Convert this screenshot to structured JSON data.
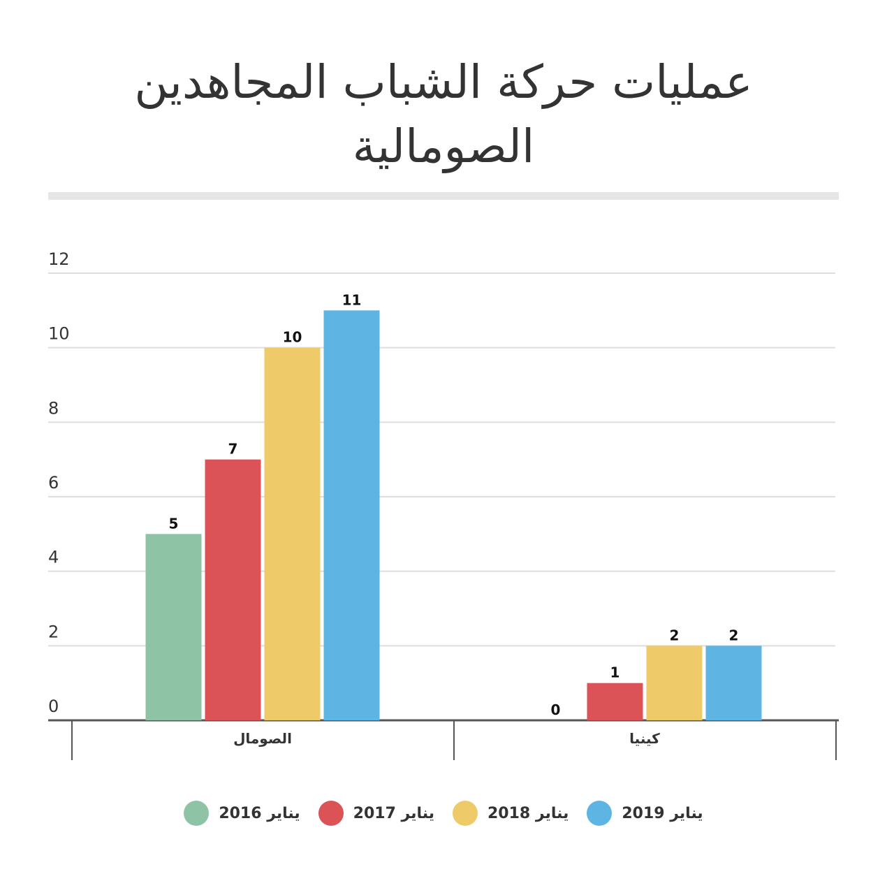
{
  "title_line1": "عمليات حركة الشباب المجاهدين",
  "title_line2": "الصومالية",
  "chart_data": {
    "type": "bar",
    "categories": [
      "الصومال",
      "كينيا"
    ],
    "series": [
      {
        "name": "يناير 2016",
        "color": "#8fc3a6",
        "values": [
          5,
          0
        ]
      },
      {
        "name": "يناير 2017",
        "color": "#db5257",
        "values": [
          7,
          1
        ]
      },
      {
        "name": "يناير 2018",
        "color": "#efca69",
        "values": [
          10,
          2
        ]
      },
      {
        "name": "يناير 2019",
        "color": "#5eb4e3",
        "values": [
          11,
          2
        ]
      }
    ],
    "ylim": [
      0,
      12
    ],
    "yticks": [
      "0",
      "2",
      "4",
      "6",
      "8",
      "10",
      "12"
    ],
    "grid": true,
    "data_labels": true,
    "legend_position": "bottom"
  }
}
